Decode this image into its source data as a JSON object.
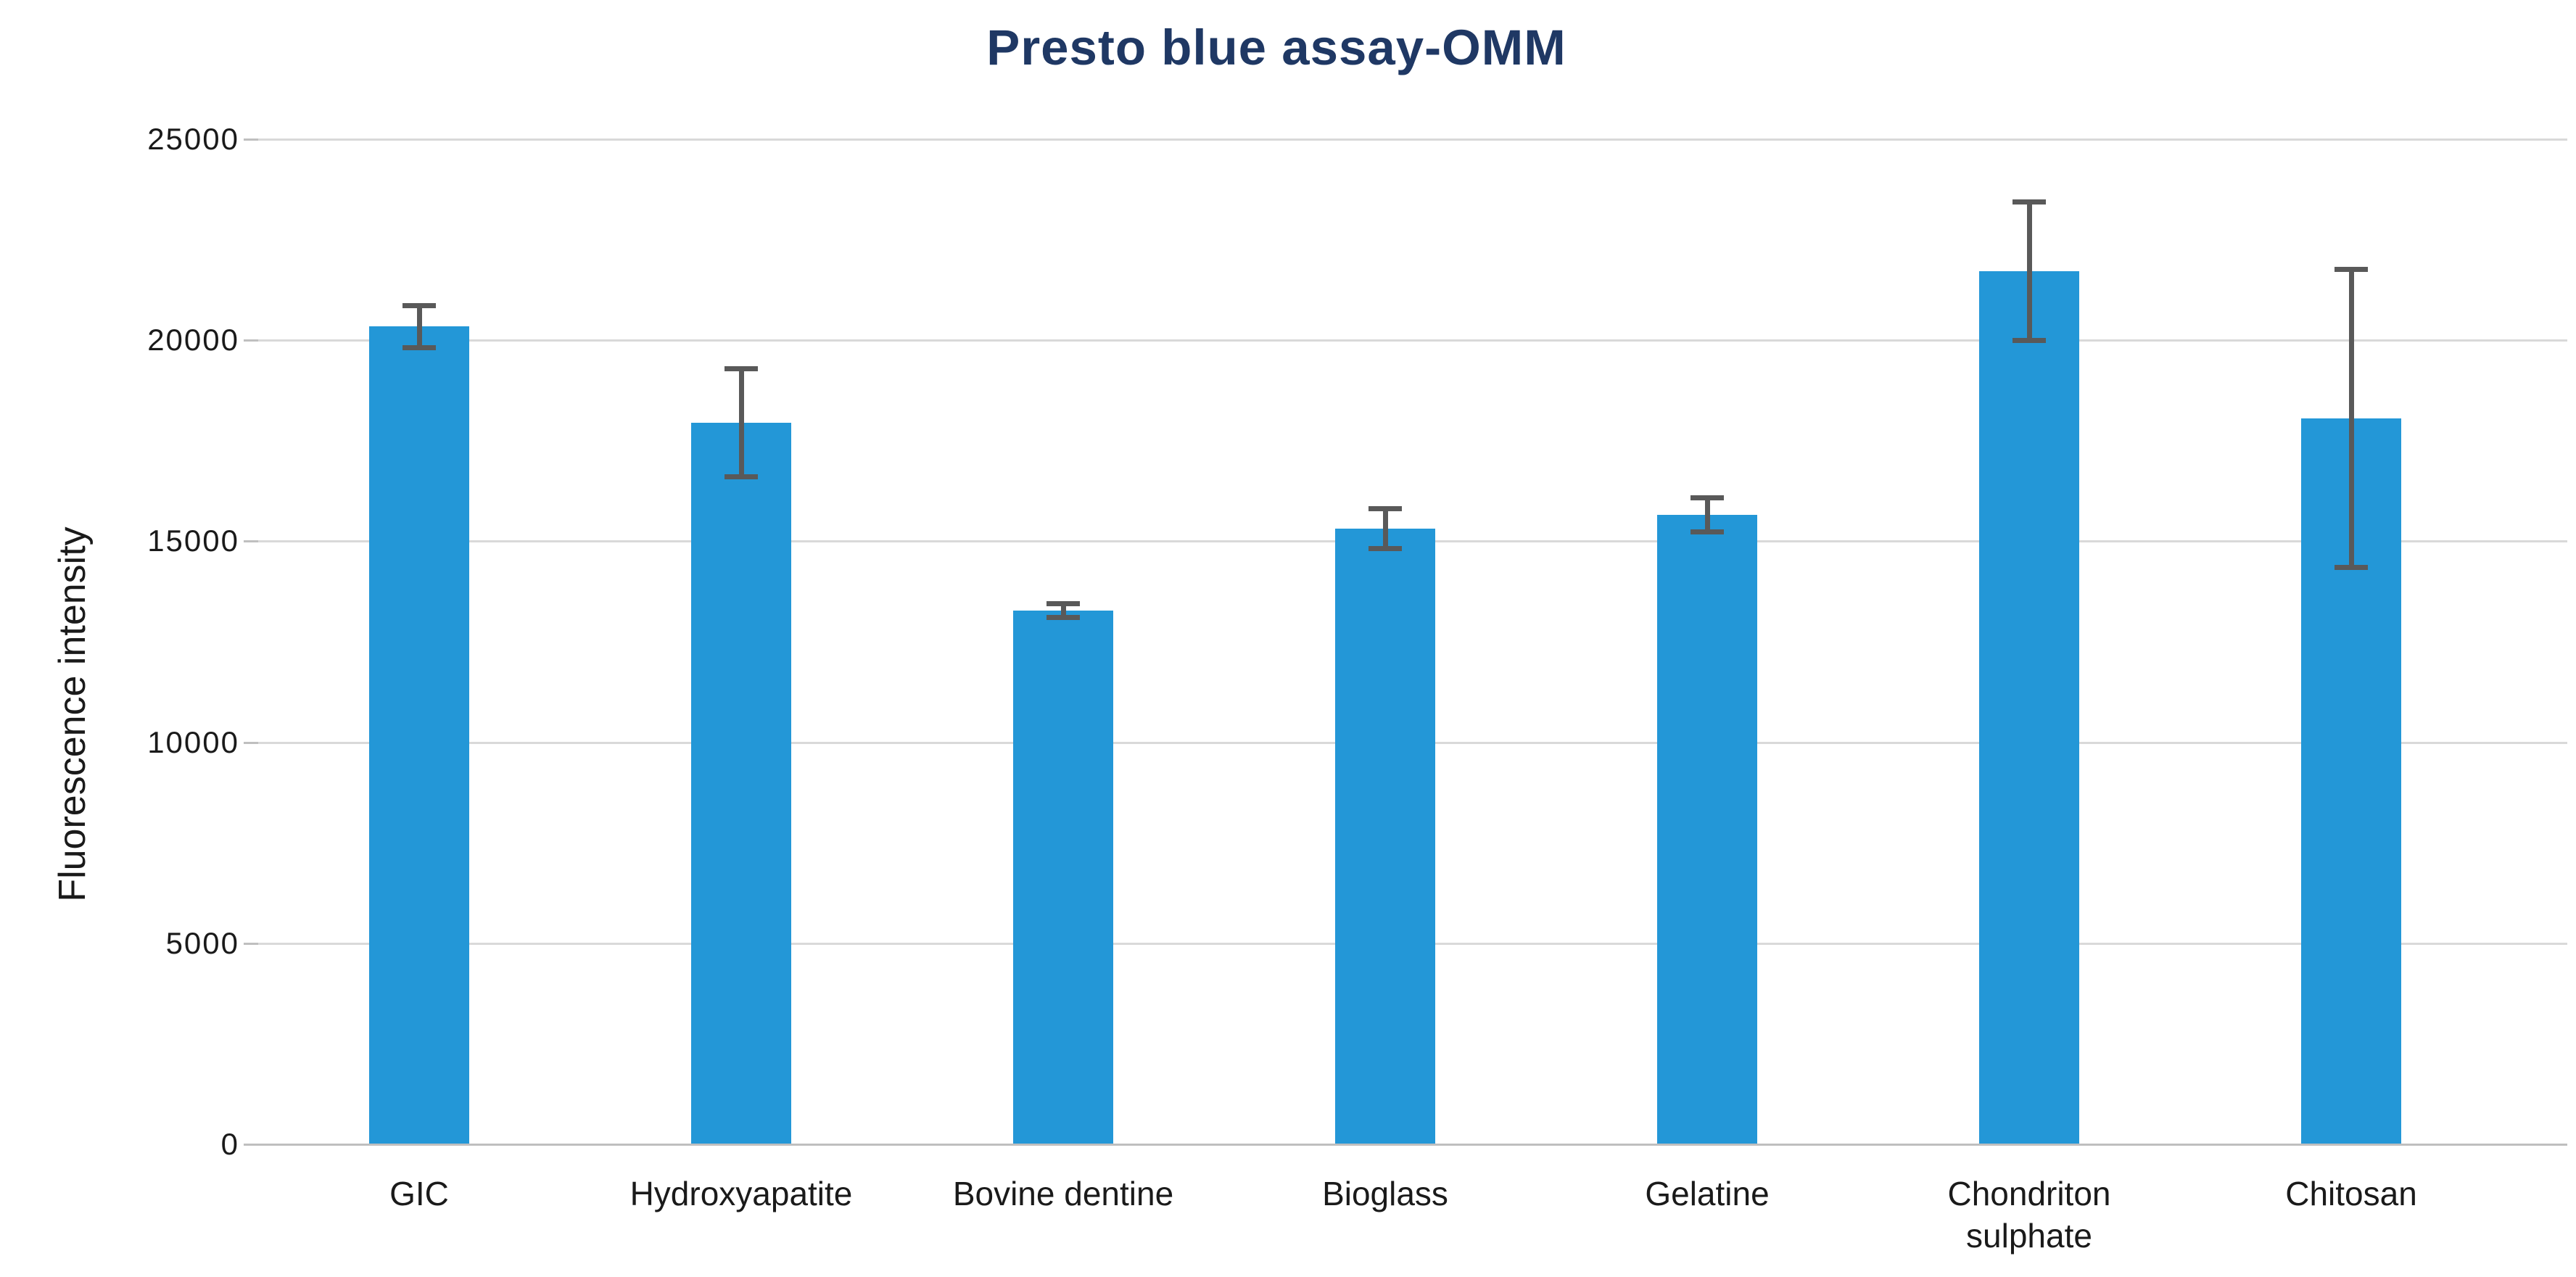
{
  "chart_data": {
    "type": "bar",
    "title": "Presto blue assay-OMM",
    "xlabel": "",
    "ylabel": "Fluorescence intensity",
    "categories": [
      "GIC",
      "Hydroxyapatite",
      "Bovine dentine",
      "Bioglass",
      "Gelatine",
      "Chondriton\nsulphate",
      "Chitosan"
    ],
    "series": [
      {
        "name": "Fluorescence intensity",
        "values": [
          20320,
          17930,
          13260,
          15300,
          15640,
          21700,
          18030
        ],
        "error_bars": [
          580,
          1400,
          230,
          560,
          480,
          1780,
          3770
        ]
      }
    ],
    "ylim": [
      0,
      25000
    ],
    "yticks": [
      0,
      5000,
      10000,
      15000,
      20000,
      25000
    ],
    "grid": true,
    "legend": false,
    "colors": {
      "bar": "#2397D7",
      "error_bar": "#595959",
      "gridline": "#D9D9D9",
      "axis_line": "#BFBFBF",
      "title": "#1F3864",
      "axis_text": "#1A1A1A"
    }
  }
}
